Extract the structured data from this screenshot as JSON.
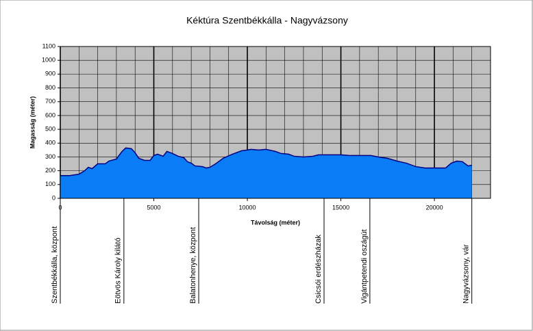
{
  "chart_data": {
    "type": "area",
    "title": "Kéktúra Szentbékkálla - Nagyvázsony",
    "x_label": "Távolság (méter)",
    "y_label": "Magasság (méter)",
    "x": [
      0,
      500,
      1000,
      1300,
      1500,
      1700,
      2000,
      2400,
      2600,
      3000,
      3300,
      3500,
      3800,
      4000,
      4200,
      4500,
      4800,
      5000,
      5200,
      5500,
      5700,
      6000,
      6300,
      6600,
      6800,
      7000,
      7200,
      7600,
      7800,
      8000,
      8300,
      8700,
      9200,
      9700,
      10000,
      10200,
      10600,
      11000,
      11500,
      11800,
      12200,
      12500,
      13000,
      13500,
      13800,
      14500,
      15000,
      15500,
      16000,
      16600,
      17000,
      17500,
      18000,
      18500,
      19000,
      19500,
      20000,
      20600,
      20900,
      21200,
      21500,
      21800,
      22000
    ],
    "values": [
      165,
      165,
      175,
      200,
      225,
      215,
      250,
      250,
      270,
      285,
      340,
      365,
      360,
      330,
      290,
      275,
      275,
      310,
      320,
      305,
      340,
      325,
      305,
      295,
      265,
      255,
      235,
      230,
      220,
      225,
      250,
      290,
      320,
      345,
      350,
      355,
      350,
      355,
      340,
      325,
      320,
      305,
      300,
      305,
      315,
      315,
      315,
      310,
      310,
      310,
      300,
      290,
      270,
      255,
      230,
      220,
      220,
      220,
      255,
      270,
      265,
      235,
      240
    ],
    "color": "#0a7cf5",
    "line_color": "#000080",
    "xlim": [
      0,
      23000
    ],
    "ylim": [
      0,
      1100
    ],
    "xticks": [
      0,
      5000,
      10000,
      15000,
      20000
    ],
    "xminorticks": [
      1000,
      2000,
      3000,
      4000,
      6000,
      7000,
      8000,
      9000,
      11000,
      12000,
      13000,
      14000,
      16000,
      17000,
      18000,
      19000,
      21000,
      22000
    ],
    "yticks": [
      0,
      100,
      200,
      300,
      400,
      500,
      600,
      700,
      800,
      900,
      1000,
      1100
    ],
    "grid": true,
    "stations": [
      {
        "x": 0,
        "label": "Szentbékkálla, központ"
      },
      {
        "x": 3400,
        "label": "Eötvös Károly kilátó"
      },
      {
        "x": 7400,
        "label": "Balatonhenye, központ"
      },
      {
        "x": 14100,
        "label": "Csicsói erdészházak"
      },
      {
        "x": 16550,
        "label": "Vigántpetendi oszágút"
      },
      {
        "x": 22000,
        "label": "Nagyvázsony, vár"
      }
    ]
  }
}
